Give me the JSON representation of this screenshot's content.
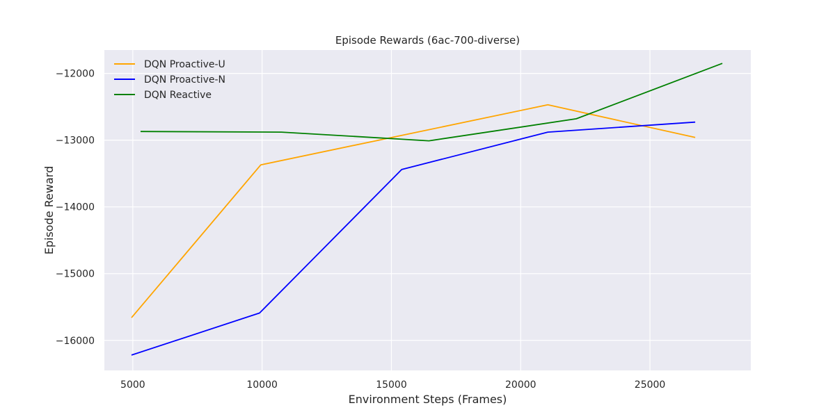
{
  "chart_data": {
    "type": "line",
    "title": "Episode Rewards (6ac-700-diverse)",
    "xlabel": "Environment Steps (Frames)",
    "ylabel": "Episode Reward",
    "xlim": [
      3900,
      28900
    ],
    "ylim": [
      -16450,
      -11650
    ],
    "x_ticks": [
      5000,
      10000,
      15000,
      20000,
      25000
    ],
    "x_tick_labels": [
      "5000",
      "10000",
      "15000",
      "20000",
      "25000"
    ],
    "y_ticks": [
      -16000,
      -15000,
      -14000,
      -13000,
      -12000
    ],
    "y_tick_labels": [
      "−16000",
      "−15000",
      "−14000",
      "−13000",
      "−12000"
    ],
    "grid": true,
    "legend_position": "top-left",
    "background_color": "#eaeaf2",
    "grid_color": "#ffffff",
    "series": [
      {
        "name": "DQN Proactive-U",
        "color": "#ffa500",
        "x": [
          4950,
          9950,
          21050,
          26750
        ],
        "y": [
          -15660,
          -13370,
          -12470,
          -12960
        ]
      },
      {
        "name": "DQN Proactive-N",
        "color": "#0000ff",
        "x": [
          4950,
          9900,
          15400,
          21050,
          26750
        ],
        "y": [
          -16220,
          -15590,
          -13440,
          -12880,
          -12730
        ]
      },
      {
        "name": "DQN Reactive",
        "color": "#008000",
        "x": [
          5300,
          10750,
          16450,
          22150,
          27800
        ],
        "y": [
          -12870,
          -12880,
          -13010,
          -12680,
          -11850
        ]
      }
    ]
  }
}
